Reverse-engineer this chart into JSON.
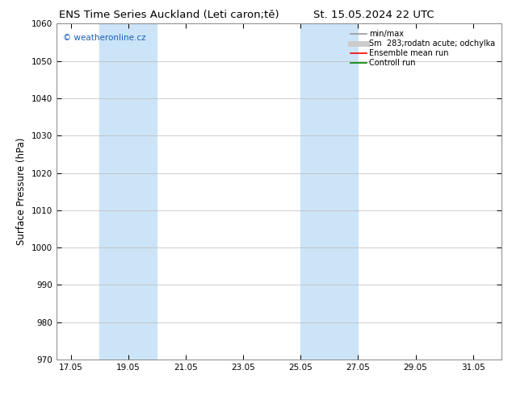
{
  "title_left": "ENS Time Series Auckland (Leti caron;tě)",
  "title_right": "St. 15.05.2024 22 UTC",
  "ylabel": "Surface Pressure (hPa)",
  "ylim": [
    970,
    1060
  ],
  "yticks": [
    970,
    980,
    990,
    1000,
    1010,
    1020,
    1030,
    1040,
    1050,
    1060
  ],
  "xlim_start": 16.5,
  "xlim_end": 32.0,
  "xtick_labels": [
    "17.05",
    "19.05",
    "21.05",
    "23.05",
    "25.05",
    "27.05",
    "29.05",
    "31.05"
  ],
  "xtick_positions": [
    17.0,
    19.0,
    21.0,
    23.0,
    25.0,
    27.0,
    29.0,
    31.0
  ],
  "shaded_regions": [
    {
      "x_start": 18.0,
      "x_end": 20.0,
      "color": "#cce4f7"
    },
    {
      "x_start": 25.0,
      "x_end": 27.0,
      "color": "#cce4f7"
    }
  ],
  "watermark_text": "© weatheronline.cz",
  "watermark_color": "#1a5fb4",
  "legend_entries": [
    {
      "label": "min/max",
      "color": "#999999",
      "linestyle": "-",
      "linewidth": 1.2
    },
    {
      "label": "Sm  283;rodatn acute; odchylka",
      "color": "#cccccc",
      "linestyle": "-",
      "linewidth": 5
    },
    {
      "label": "Ensemble mean run",
      "color": "red",
      "linestyle": "-",
      "linewidth": 1.2
    },
    {
      "label": "Controll run",
      "color": "green",
      "linestyle": "-",
      "linewidth": 1.2
    }
  ],
  "background_color": "#ffffff",
  "grid_color": "#bbbbbb",
  "tick_label_fontsize": 7.5,
  "axis_label_fontsize": 8.5,
  "title_fontsize": 9.5,
  "legend_fontsize": 7
}
